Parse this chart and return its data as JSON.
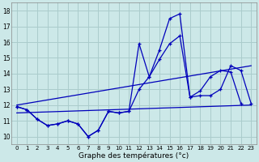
{
  "xlabel": "Graphe des températures (°c)",
  "background_color": "#cce8e8",
  "grid_color": "#aacccc",
  "line_color": "#0000bb",
  "xlim": [
    -0.5,
    23.5
  ],
  "ylim": [
    9.5,
    18.5
  ],
  "xticks": [
    0,
    1,
    2,
    3,
    4,
    5,
    6,
    7,
    8,
    9,
    10,
    11,
    12,
    13,
    14,
    15,
    16,
    17,
    18,
    19,
    20,
    21,
    22,
    23
  ],
  "yticks": [
    10,
    11,
    12,
    13,
    14,
    15,
    16,
    17,
    18
  ],
  "s1_x": [
    0,
    1,
    2,
    3,
    4,
    5,
    6,
    7,
    8,
    9,
    10,
    11,
    12,
    13,
    14,
    15,
    16,
    17,
    18,
    19,
    20,
    21,
    22
  ],
  "s1_y": [
    11.9,
    11.7,
    11.1,
    10.7,
    10.8,
    11.0,
    10.8,
    10.0,
    10.4,
    11.6,
    11.5,
    11.6,
    13.0,
    13.8,
    14.9,
    15.9,
    16.4,
    12.5,
    12.9,
    13.8,
    14.2,
    14.1,
    12.1
  ],
  "s2_x": [
    0,
    1,
    2,
    3,
    4,
    5,
    6,
    7,
    8,
    9,
    10,
    11,
    12,
    13,
    14,
    15,
    16,
    17,
    18,
    19,
    20,
    21,
    22,
    23
  ],
  "s2_y": [
    11.9,
    11.7,
    11.1,
    10.7,
    10.8,
    11.0,
    10.8,
    10.0,
    10.4,
    11.6,
    11.5,
    11.6,
    15.9,
    13.8,
    15.5,
    17.5,
    17.8,
    12.5,
    12.6,
    12.6,
    13.0,
    14.5,
    14.2,
    12.1
  ],
  "trend1_x": [
    0,
    23
  ],
  "trend1_y": [
    11.5,
    12.0
  ],
  "trend2_x": [
    0,
    23
  ],
  "trend2_y": [
    12.0,
    14.5
  ]
}
